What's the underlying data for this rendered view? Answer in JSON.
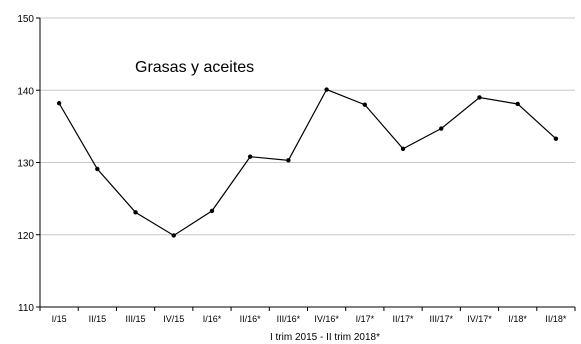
{
  "chart_data": {
    "type": "line",
    "title": "Grasas y aceites",
    "xlabel": "I trim 2015 - II trim 2018*",
    "ylabel": "",
    "ylim": [
      110,
      150
    ],
    "yticks": [
      110,
      120,
      130,
      140,
      150
    ],
    "grid": true,
    "categories": [
      "I/15",
      "II/15",
      "III/15",
      "IV/15",
      "I/16*",
      "II/16*",
      "III/16*",
      "IV/16*",
      "I/17*",
      "II/17*",
      "III/17*",
      "IV/17*",
      "I/18*",
      "II/18*"
    ],
    "series": [
      {
        "values": [
          138.2,
          129.1,
          123.1,
          119.9,
          123.3,
          130.8,
          130.3,
          140.1,
          138.0,
          131.9,
          134.7,
          139.0,
          138.1,
          133.3
        ],
        "color": "#000000"
      }
    ]
  }
}
